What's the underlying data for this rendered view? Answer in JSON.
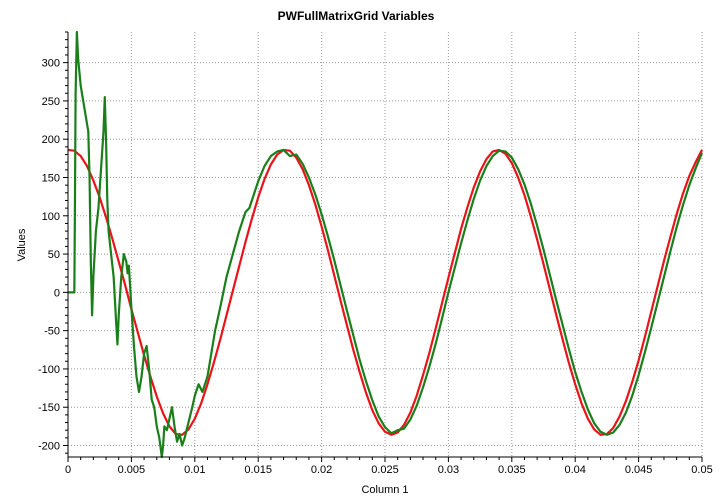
{
  "chart_data": {
    "type": "line",
    "title": "PWFullMatrixGrid Variables",
    "xlabel": "Column 1",
    "ylabel": "Values",
    "xlim": [
      0,
      0.05
    ],
    "ylim": [
      -215,
      340
    ],
    "grid": true,
    "x_ticks": [
      0,
      0.005,
      0.01,
      0.015,
      0.02,
      0.025,
      0.03,
      0.035,
      0.04,
      0.045,
      0.05
    ],
    "x_tick_labels": [
      "0",
      "0.005",
      "0.01",
      "0.015",
      "0.02",
      "0.025",
      "0.03",
      "0.035",
      "0.04",
      "0.045",
      "0.05"
    ],
    "y_ticks": [
      300,
      250,
      200,
      150,
      100,
      50,
      0,
      -50,
      -100,
      -150,
      -200
    ],
    "y_tick_labels": [
      "300",
      "250",
      "200",
      "150",
      "100",
      "50",
      "0",
      "-50",
      "-100",
      "-150",
      "-200"
    ],
    "series": [
      {
        "color": "#e8141a",
        "points": [
          [
            0,
            186
          ],
          [
            0.0005,
            185
          ],
          [
            0.001,
            178
          ],
          [
            0.0015,
            165
          ],
          [
            0.002,
            146
          ],
          [
            0.0025,
            124
          ],
          [
            0.003,
            98
          ],
          [
            0.0035,
            70
          ],
          [
            0.004,
            40
          ],
          [
            0.0045,
            10
          ],
          [
            0.005,
            -22
          ],
          [
            0.0055,
            -52
          ],
          [
            0.006,
            -82
          ],
          [
            0.0065,
            -110
          ],
          [
            0.007,
            -136
          ],
          [
            0.0075,
            -158
          ],
          [
            0.008,
            -175
          ],
          [
            0.0085,
            -185
          ],
          [
            0.009,
            -186
          ],
          [
            0.0095,
            -179
          ],
          [
            0.01,
            -165
          ],
          [
            0.0105,
            -145
          ],
          [
            0.011,
            -120
          ],
          [
            0.0115,
            -92
          ],
          [
            0.012,
            -62
          ],
          [
            0.0125,
            -30
          ],
          [
            0.013,
            2
          ],
          [
            0.0135,
            34
          ],
          [
            0.014,
            66
          ],
          [
            0.0145,
            96
          ],
          [
            0.015,
            124
          ],
          [
            0.0155,
            148
          ],
          [
            0.016,
            167
          ],
          [
            0.0165,
            180
          ],
          [
            0.017,
            186
          ],
          [
            0.0175,
            185
          ],
          [
            0.018,
            176
          ],
          [
            0.0185,
            161
          ],
          [
            0.019,
            140
          ],
          [
            0.0195,
            115
          ],
          [
            0.02,
            86
          ],
          [
            0.0205,
            55
          ],
          [
            0.021,
            22
          ],
          [
            0.0215,
            -11
          ],
          [
            0.022,
            -43
          ],
          [
            0.0225,
            -75
          ],
          [
            0.023,
            -104
          ],
          [
            0.0235,
            -131
          ],
          [
            0.024,
            -154
          ],
          [
            0.0245,
            -171
          ],
          [
            0.025,
            -182
          ],
          [
            0.0255,
            -186
          ],
          [
            0.026,
            -183
          ],
          [
            0.0265,
            -173
          ],
          [
            0.027,
            -157
          ],
          [
            0.0275,
            -135
          ],
          [
            0.028,
            -108
          ],
          [
            0.0285,
            -79
          ],
          [
            0.029,
            -47
          ],
          [
            0.0295,
            -14
          ],
          [
            0.03,
            19
          ],
          [
            0.0305,
            51
          ],
          [
            0.031,
            83
          ],
          [
            0.0315,
            111
          ],
          [
            0.032,
            137
          ],
          [
            0.0325,
            158
          ],
          [
            0.033,
            174
          ],
          [
            0.0335,
            184
          ],
          [
            0.034,
            186
          ],
          [
            0.0345,
            181
          ],
          [
            0.035,
            169
          ],
          [
            0.0355,
            150
          ],
          [
            0.036,
            127
          ],
          [
            0.0365,
            99
          ],
          [
            0.037,
            69
          ],
          [
            0.0375,
            37
          ],
          [
            0.038,
            4
          ],
          [
            0.0385,
            -29
          ],
          [
            0.039,
            -61
          ],
          [
            0.0395,
            -92
          ],
          [
            0.04,
            -120
          ],
          [
            0.0405,
            -145
          ],
          [
            0.041,
            -165
          ],
          [
            0.0415,
            -179
          ],
          [
            0.042,
            -186
          ],
          [
            0.0425,
            -185
          ],
          [
            0.043,
            -177
          ],
          [
            0.0435,
            -162
          ],
          [
            0.044,
            -142
          ],
          [
            0.0445,
            -117
          ],
          [
            0.045,
            -89
          ],
          [
            0.0455,
            -58
          ],
          [
            0.046,
            -25
          ],
          [
            0.0465,
            8
          ],
          [
            0.047,
            41
          ],
          [
            0.0475,
            72
          ],
          [
            0.048,
            102
          ],
          [
            0.0485,
            129
          ],
          [
            0.049,
            152
          ],
          [
            0.0495,
            170
          ],
          [
            0.05,
            186
          ]
        ]
      },
      {
        "color": "#1a7f1a",
        "points": [
          [
            0,
            0
          ],
          [
            0.0004,
            0
          ],
          [
            0.0005,
            0
          ],
          [
            0.00055,
            120
          ],
          [
            0.0006,
            260
          ],
          [
            0.0007,
            340
          ],
          [
            0.0008,
            305
          ],
          [
            0.001,
            270
          ],
          [
            0.0012,
            250
          ],
          [
            0.0014,
            230
          ],
          [
            0.0016,
            210
          ],
          [
            0.0017,
            150
          ],
          [
            0.0018,
            40
          ],
          [
            0.0019,
            -30
          ],
          [
            0.002,
            20
          ],
          [
            0.0022,
            80
          ],
          [
            0.0024,
            110
          ],
          [
            0.0026,
            160
          ],
          [
            0.0028,
            210
          ],
          [
            0.0029,
            255
          ],
          [
            0.003,
            200
          ],
          [
            0.0031,
            120
          ],
          [
            0.0032,
            80
          ],
          [
            0.0034,
            50
          ],
          [
            0.0036,
            20
          ],
          [
            0.0037,
            -10
          ],
          [
            0.0038,
            -40
          ],
          [
            0.0039,
            -68
          ],
          [
            0.004,
            -30
          ],
          [
            0.0042,
            20
          ],
          [
            0.0044,
            50
          ],
          [
            0.0046,
            40
          ],
          [
            0.0047,
            25
          ],
          [
            0.0048,
            35
          ],
          [
            0.005,
            -20
          ],
          [
            0.0052,
            -70
          ],
          [
            0.0054,
            -110
          ],
          [
            0.0056,
            -130
          ],
          [
            0.0058,
            -110
          ],
          [
            0.006,
            -80
          ],
          [
            0.0062,
            -70
          ],
          [
            0.0064,
            -100
          ],
          [
            0.0066,
            -140
          ],
          [
            0.0068,
            -150
          ],
          [
            0.007,
            -175
          ],
          [
            0.0072,
            -190
          ],
          [
            0.0074,
            -215
          ],
          [
            0.0075,
            -200
          ],
          [
            0.0076,
            -175
          ],
          [
            0.0078,
            -180
          ],
          [
            0.008,
            -165
          ],
          [
            0.0082,
            -150
          ],
          [
            0.0084,
            -175
          ],
          [
            0.0086,
            -195
          ],
          [
            0.0088,
            -185
          ],
          [
            0.009,
            -200
          ],
          [
            0.0092,
            -190
          ],
          [
            0.0095,
            -170
          ],
          [
            0.0098,
            -150
          ],
          [
            0.01,
            -135
          ],
          [
            0.0103,
            -120
          ],
          [
            0.0106,
            -130
          ],
          [
            0.011,
            -110
          ],
          [
            0.0113,
            -80
          ],
          [
            0.0116,
            -50
          ],
          [
            0.012,
            -20
          ],
          [
            0.0125,
            20
          ],
          [
            0.013,
            50
          ],
          [
            0.0135,
            80
          ],
          [
            0.014,
            105
          ],
          [
            0.0143,
            110
          ],
          [
            0.0146,
            125
          ],
          [
            0.015,
            145
          ],
          [
            0.0155,
            165
          ],
          [
            0.016,
            178
          ],
          [
            0.0165,
            184
          ],
          [
            0.017,
            186
          ],
          [
            0.0175,
            178
          ],
          [
            0.018,
            180
          ],
          [
            0.0185,
            168
          ],
          [
            0.019,
            150
          ],
          [
            0.0195,
            128
          ],
          [
            0.02,
            102
          ],
          [
            0.0205,
            73
          ],
          [
            0.021,
            42
          ],
          [
            0.0215,
            9
          ],
          [
            0.022,
            -24
          ],
          [
            0.0225,
            -56
          ],
          [
            0.023,
            -88
          ],
          [
            0.0235,
            -116
          ],
          [
            0.024,
            -141
          ],
          [
            0.0245,
            -162
          ],
          [
            0.025,
            -176
          ],
          [
            0.0255,
            -184
          ],
          [
            0.026,
            -180
          ],
          [
            0.0265,
            -178
          ],
          [
            0.027,
            -166
          ],
          [
            0.0275,
            -148
          ],
          [
            0.028,
            -124
          ],
          [
            0.0285,
            -97
          ],
          [
            0.029,
            -67
          ],
          [
            0.0295,
            -34
          ],
          [
            0.03,
            0
          ],
          [
            0.0305,
            32
          ],
          [
            0.031,
            64
          ],
          [
            0.0315,
            94
          ],
          [
            0.032,
            122
          ],
          [
            0.0325,
            146
          ],
          [
            0.033,
            165
          ],
          [
            0.0335,
            178
          ],
          [
            0.034,
            185
          ],
          [
            0.0345,
            184
          ],
          [
            0.035,
            176
          ],
          [
            0.0355,
            161
          ],
          [
            0.036,
            141
          ],
          [
            0.0365,
            116
          ],
          [
            0.037,
            87
          ],
          [
            0.0375,
            56
          ],
          [
            0.038,
            23
          ],
          [
            0.0385,
            -10
          ],
          [
            0.039,
            -42
          ],
          [
            0.0395,
            -74
          ],
          [
            0.04,
            -104
          ],
          [
            0.0405,
            -130
          ],
          [
            0.041,
            -153
          ],
          [
            0.0415,
            -171
          ],
          [
            0.042,
            -182
          ],
          [
            0.0425,
            -186
          ],
          [
            0.043,
            -183
          ],
          [
            0.0435,
            -173
          ],
          [
            0.044,
            -157
          ],
          [
            0.0445,
            -135
          ],
          [
            0.045,
            -108
          ],
          [
            0.0455,
            -78
          ],
          [
            0.046,
            -46
          ],
          [
            0.0465,
            -13
          ],
          [
            0.047,
            20
          ],
          [
            0.0475,
            53
          ],
          [
            0.048,
            85
          ],
          [
            0.0485,
            114
          ],
          [
            0.049,
            140
          ],
          [
            0.0495,
            162
          ],
          [
            0.05,
            182
          ]
        ]
      }
    ]
  }
}
